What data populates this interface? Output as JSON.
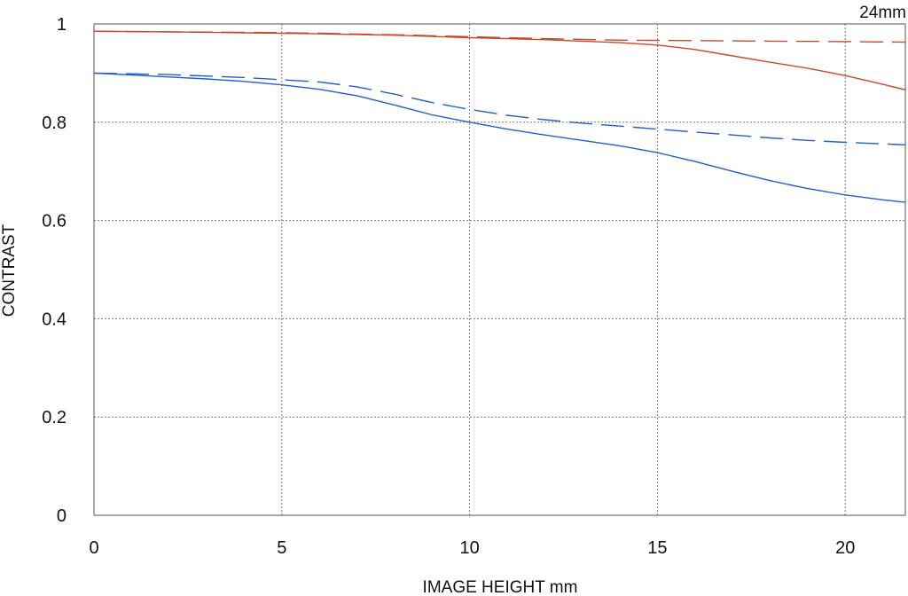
{
  "chart_data": {
    "type": "line",
    "title": "",
    "annotation": "24mm",
    "xlabel": "IMAGE HEIGHT  mm",
    "ylabel": "CONTRAST",
    "xlim": [
      0,
      21.6
    ],
    "ylim": [
      0,
      1
    ],
    "x_ticks": [
      "0",
      "5",
      "10",
      "15",
      "20"
    ],
    "y_ticks": [
      "0",
      "0.2",
      "0.4",
      "0.6",
      "0.8",
      "1"
    ],
    "x_tick_values": [
      0,
      5,
      10,
      15,
      20
    ],
    "y_tick_values": [
      0,
      0.2,
      0.4,
      0.6,
      0.8,
      1
    ],
    "grid": true,
    "series": [
      {
        "color": "#c8482a",
        "dash": "solid",
        "x": [
          0,
          2,
          4,
          6,
          8,
          10,
          12,
          14,
          15,
          16,
          17,
          18,
          19,
          20,
          21,
          21.6
        ],
        "y": [
          0.985,
          0.984,
          0.982,
          0.98,
          0.977,
          0.972,
          0.968,
          0.962,
          0.957,
          0.948,
          0.935,
          0.922,
          0.91,
          0.895,
          0.877,
          0.866
        ]
      },
      {
        "color": "#c8482a",
        "dash": "dashed",
        "x": [
          0,
          2,
          4,
          6,
          8,
          10,
          12,
          14,
          16,
          18,
          20,
          21.6
        ],
        "y": [
          0.985,
          0.984,
          0.983,
          0.981,
          0.978,
          0.974,
          0.97,
          0.967,
          0.966,
          0.965,
          0.964,
          0.963
        ]
      },
      {
        "color": "#1f5fcf",
        "dash": "solid",
        "x": [
          0,
          1,
          2,
          3,
          4,
          5,
          6,
          7,
          8,
          9,
          10,
          11,
          12,
          13,
          14,
          15,
          16,
          17,
          18,
          19,
          20,
          21,
          21.6
        ],
        "y": [
          0.9,
          0.896,
          0.892,
          0.888,
          0.883,
          0.876,
          0.867,
          0.854,
          0.835,
          0.815,
          0.8,
          0.786,
          0.774,
          0.763,
          0.752,
          0.738,
          0.72,
          0.7,
          0.681,
          0.665,
          0.652,
          0.642,
          0.637
        ]
      },
      {
        "color": "#1f5fcf",
        "dash": "dashed",
        "x": [
          0,
          2,
          4,
          6,
          7,
          8,
          9,
          10,
          11,
          12,
          13,
          14,
          15,
          16,
          17,
          18,
          19,
          20,
          21,
          21.6
        ],
        "y": [
          0.9,
          0.897,
          0.891,
          0.882,
          0.872,
          0.857,
          0.84,
          0.826,
          0.814,
          0.805,
          0.798,
          0.792,
          0.786,
          0.78,
          0.774,
          0.768,
          0.763,
          0.759,
          0.756,
          0.754
        ]
      }
    ]
  }
}
